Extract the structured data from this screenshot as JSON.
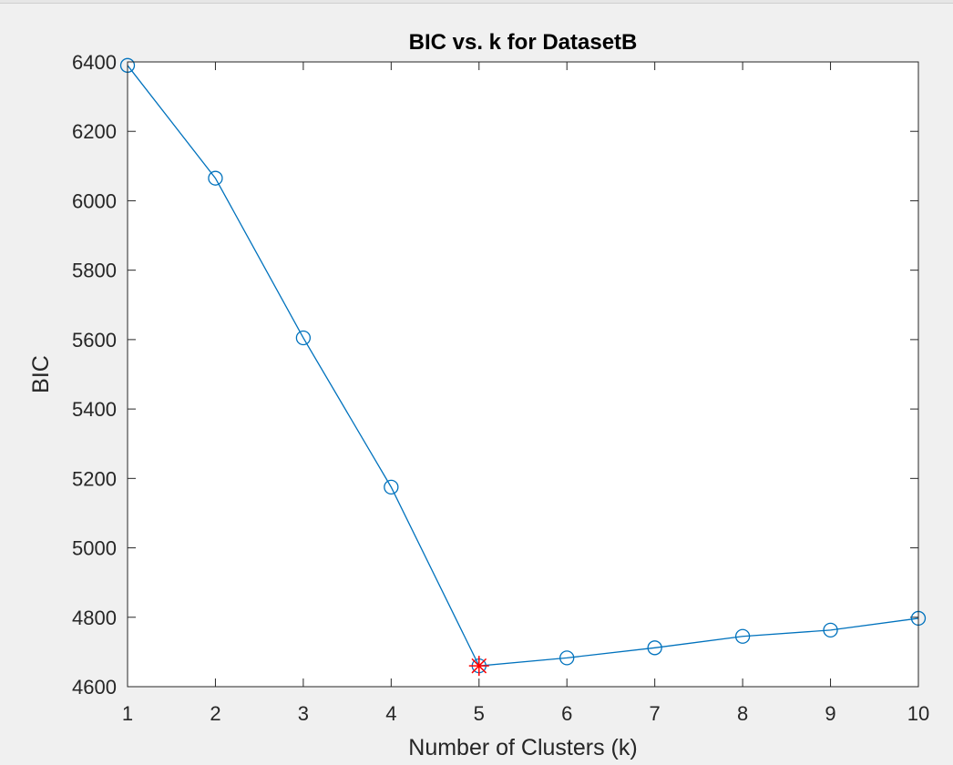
{
  "figure": {
    "background": "#f0f0f0",
    "axes_background": "#ffffff",
    "axis_color": "#262626"
  },
  "chart_data": {
    "type": "line",
    "title": "BIC vs. k for DatasetB",
    "xlabel": "Number of Clusters (k)",
    "ylabel": "BIC",
    "xlim": [
      1,
      10
    ],
    "ylim": [
      4600,
      6400
    ],
    "xticks": [
      1,
      2,
      3,
      4,
      5,
      6,
      7,
      8,
      9,
      10
    ],
    "yticks": [
      4600,
      4800,
      5000,
      5200,
      5400,
      5600,
      5800,
      6000,
      6200,
      6400
    ],
    "grid": false,
    "series": [
      {
        "x": [
          1,
          2,
          3,
          4,
          5,
          6,
          7,
          8,
          9,
          10
        ],
        "y": [
          6390,
          6065,
          5605,
          5175,
          4660,
          4683,
          4712,
          4745,
          4763,
          4797
        ],
        "color": "#0072BD",
        "marker": "circle"
      }
    ],
    "highlight": {
      "x": 5,
      "y": 4660,
      "color": "#ff0000",
      "marker": "asterisk"
    }
  }
}
